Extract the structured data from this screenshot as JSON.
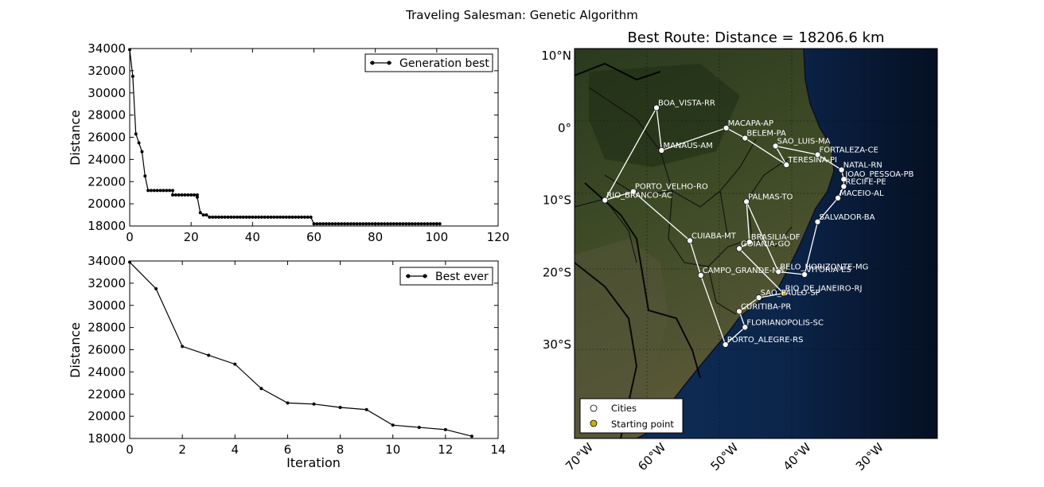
{
  "suptitle": "Traveling Salesman: Genetic Algorithm",
  "colors": {
    "line": "#000000",
    "route": "#ffffff",
    "city_fill": "#ffffff",
    "start_fill": "#c8b400",
    "ocean": "#0a2244",
    "land": "#2c3a1c"
  },
  "chart_data": [
    {
      "type": "line",
      "ylabel": "Distance",
      "xlabel": "",
      "xlim": [
        0,
        120
      ],
      "ylim": [
        18000,
        34000
      ],
      "xticks": [
        "0",
        "20",
        "40",
        "60",
        "80",
        "100",
        "120"
      ],
      "yticks": [
        "18000",
        "20000",
        "22000",
        "24000",
        "26000",
        "28000",
        "30000",
        "32000",
        "34000"
      ],
      "legend": "top-right",
      "series": [
        {
          "name": "Generation best",
          "segments": [
            {
              "x": [
                0,
                1,
                2,
                3,
                4,
                5
              ],
              "y": [
                33900,
                31500,
                26300,
                25500,
                24700,
                22500
              ]
            },
            {
              "x_start": 6,
              "x_end": 14,
              "y": 21200
            },
            {
              "x_start": 14,
              "x_end": 22,
              "y": 20800
            },
            {
              "x": [
                22,
                23
              ],
              "y": [
                20600,
                19200
              ]
            },
            {
              "x_start": 24,
              "x_end": 25,
              "y": 19000
            },
            {
              "x_start": 26,
              "x_end": 59,
              "y": 18800
            },
            {
              "x_start": 60,
              "x_end": 101,
              "y": 18200
            }
          ]
        }
      ]
    },
    {
      "type": "line",
      "ylabel": "Distance",
      "xlabel": "Iteration",
      "xlim": [
        0,
        14
      ],
      "ylim": [
        18000,
        34000
      ],
      "xticks": [
        "0",
        "2",
        "4",
        "6",
        "8",
        "10",
        "12",
        "14"
      ],
      "yticks": [
        "18000",
        "20000",
        "22000",
        "24000",
        "26000",
        "28000",
        "30000",
        "32000",
        "34000"
      ],
      "legend": "top-right",
      "series": [
        {
          "name": "Best ever",
          "x": [
            0,
            1,
            2,
            3,
            4,
            5,
            6,
            7,
            8,
            9,
            10,
            11,
            12,
            13
          ],
          "y": [
            33900,
            31500,
            26300,
            25500,
            24700,
            22500,
            21200,
            21100,
            20800,
            20600,
            19200,
            19000,
            18800,
            18200
          ]
        }
      ]
    },
    {
      "type": "map",
      "title": "Best Route: Distance = 18206.6 km",
      "lon_range": [
        -72,
        -22
      ],
      "lat_range": [
        -43,
        11
      ],
      "lon_ticks": [
        "70°W",
        "60°W",
        "50°W",
        "40°W",
        "30°W"
      ],
      "lat_ticks": [
        "10°N",
        "0°",
        "10°S",
        "20°S",
        "30°S"
      ],
      "legend": "bottom-left",
      "legend_labels": [
        "Cities",
        "Starting point"
      ],
      "cities": [
        {
          "name": "RIO_DE_JANEIRO-RJ",
          "lon": -43.2,
          "lat": -22.9,
          "start": true
        },
        {
          "name": "SAO_PAULO-SP",
          "lon": -46.6,
          "lat": -23.5
        },
        {
          "name": "CURITIBA-PR",
          "lon": -49.3,
          "lat": -25.4
        },
        {
          "name": "FLORIANOPOLIS-SC",
          "lon": -48.5,
          "lat": -27.6
        },
        {
          "name": "PORTO_ALEGRE-RS",
          "lon": -51.2,
          "lat": -30.0
        },
        {
          "name": "CAMPO_GRANDE-MS",
          "lon": -54.6,
          "lat": -20.4
        },
        {
          "name": "CUIABA-MT",
          "lon": -56.1,
          "lat": -15.6
        },
        {
          "name": "PORTO_VELHO-RO",
          "lon": -63.9,
          "lat": -8.8
        },
        {
          "name": "RIO_BRANCO-AC",
          "lon": -67.8,
          "lat": -10.0
        },
        {
          "name": "BOA_VISTA-RR",
          "lon": -60.7,
          "lat": 2.8
        },
        {
          "name": "MANAUS-AM",
          "lon": -60.0,
          "lat": -3.1
        },
        {
          "name": "MACAPA-AP",
          "lon": -51.1,
          "lat": 0.0
        },
        {
          "name": "BELEM-PA",
          "lon": -48.5,
          "lat": -1.4
        },
        {
          "name": "TERESINA-PI",
          "lon": -42.8,
          "lat": -5.1
        },
        {
          "name": "SAO_LUIS-MA",
          "lon": -44.3,
          "lat": -2.5
        },
        {
          "name": "FORTALEZA-CE",
          "lon": -38.5,
          "lat": -3.7
        },
        {
          "name": "NATAL-RN",
          "lon": -35.2,
          "lat": -5.8
        },
        {
          "name": "JOAO_PESSOA-PB",
          "lon": -34.9,
          "lat": -7.1
        },
        {
          "name": "RECIFE-PE",
          "lon": -34.9,
          "lat": -8.1
        },
        {
          "name": "MACEIO-AL",
          "lon": -35.7,
          "lat": -9.7
        },
        {
          "name": "SALVADOR-BA",
          "lon": -38.5,
          "lat": -13.0
        },
        {
          "name": "VITORIA-ES",
          "lon": -40.3,
          "lat": -20.3
        },
        {
          "name": "BELO_HORIZONTE-MG",
          "lon": -43.9,
          "lat": -19.9
        },
        {
          "name": "PALMAS-TO",
          "lon": -48.3,
          "lat": -10.2
        },
        {
          "name": "BRASILIA-DF",
          "lon": -47.9,
          "lat": -15.8
        },
        {
          "name": "GOIANIA-GO",
          "lon": -49.3,
          "lat": -16.7
        }
      ]
    }
  ]
}
